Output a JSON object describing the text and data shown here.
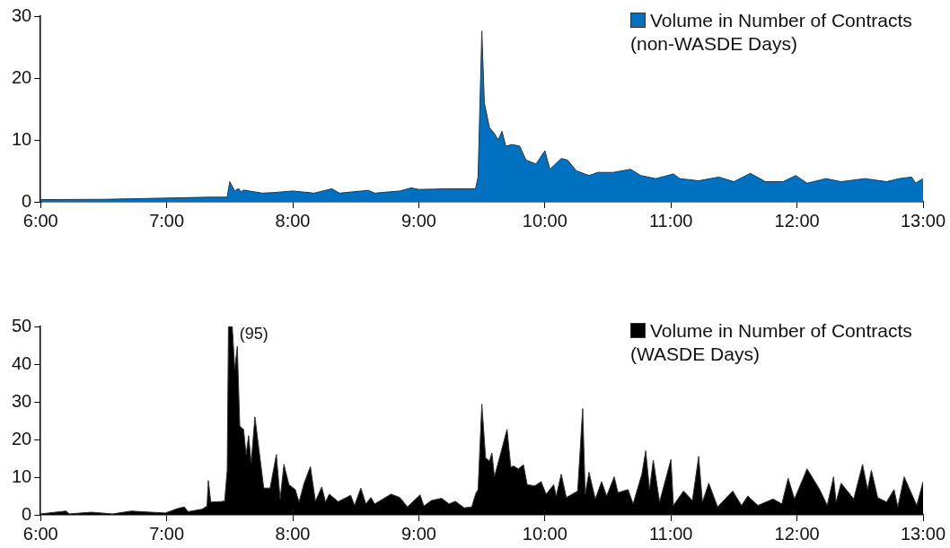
{
  "chart_data": [
    {
      "type": "area",
      "xlim": [
        6,
        13
      ],
      "xticks": [
        {
          "value": 6,
          "label": "6:00"
        },
        {
          "value": 7,
          "label": "7:00"
        },
        {
          "value": 8,
          "label": "8:00"
        },
        {
          "value": 9,
          "label": "9:00"
        },
        {
          "value": 10,
          "label": "10:00"
        },
        {
          "value": 11,
          "label": "11:00"
        },
        {
          "value": 12,
          "label": "12:00"
        },
        {
          "value": 13,
          "label": "13:00"
        }
      ],
      "ylim": [
        0,
        30
      ],
      "yticks": [
        0,
        10,
        20,
        30
      ],
      "grid": false,
      "legend": "top right",
      "series": [
        {
          "name": "Volume in Number of Contracts (non-WASDE Days)",
          "color": "#0070c0",
          "x": [
            6.0,
            6.5,
            7.0,
            7.34,
            7.48,
            7.5,
            7.54,
            7.57,
            7.59,
            7.61,
            7.76,
            7.85,
            8.0,
            8.17,
            8.31,
            8.37,
            8.6,
            8.65,
            8.85,
            8.94,
            9.0,
            9.23,
            9.38,
            9.45,
            9.47,
            9.5,
            9.52,
            9.56,
            9.6,
            9.63,
            9.66,
            9.69,
            9.74,
            9.8,
            9.85,
            9.93,
            10.0,
            10.04,
            10.13,
            10.18,
            10.25,
            10.35,
            10.42,
            10.54,
            10.68,
            10.76,
            10.88,
            11.02,
            11.07,
            11.22,
            11.38,
            11.5,
            11.63,
            11.75,
            11.89,
            11.99,
            12.08,
            12.23,
            12.35,
            12.54,
            12.71,
            12.81,
            12.91,
            12.94,
            13.0
          ],
          "values": [
            0.35,
            0.4,
            0.6,
            0.75,
            0.75,
            3.25,
            1.75,
            2.15,
            1.6,
            1.9,
            1.4,
            1.5,
            1.75,
            1.4,
            2.1,
            1.4,
            1.85,
            1.4,
            1.75,
            2.25,
            2.0,
            2.1,
            2.1,
            2.1,
            4.0,
            27.6,
            16.0,
            12.0,
            11.0,
            10.0,
            11.4,
            9.0,
            9.25,
            9.0,
            6.75,
            6.1,
            8.25,
            5.25,
            7.0,
            6.75,
            5.0,
            4.25,
            4.75,
            4.75,
            5.25,
            4.25,
            3.75,
            4.5,
            3.75,
            3.4,
            4.0,
            3.25,
            4.6,
            3.25,
            3.25,
            4.25,
            3.0,
            3.75,
            3.25,
            3.75,
            3.25,
            3.75,
            4.0,
            3.0,
            3.75
          ]
        }
      ]
    },
    {
      "type": "area",
      "xlim": [
        6,
        13
      ],
      "xticks": [
        {
          "value": 6,
          "label": "6:00"
        },
        {
          "value": 7,
          "label": "7:00"
        },
        {
          "value": 8,
          "label": "8:00"
        },
        {
          "value": 9,
          "label": "9:00"
        },
        {
          "value": 10,
          "label": "10:00"
        },
        {
          "value": 11,
          "label": "11:00"
        },
        {
          "value": 12,
          "label": "12:00"
        },
        {
          "value": 13,
          "label": "13:00"
        }
      ],
      "ylim": [
        0,
        50
      ],
      "yticks": [
        0,
        10,
        20,
        30,
        40,
        50
      ],
      "grid": false,
      "legend": "top right",
      "annotations": [
        {
          "text": "(95)",
          "x": 7.52,
          "y": 50
        }
      ],
      "series": [
        {
          "name": "Volume in Number of Contracts (WASDE Days)",
          "color": "#000000",
          "x": [
            6.0,
            6.2,
            6.23,
            6.4,
            6.57,
            6.72,
            6.87,
            6.99,
            7.09,
            7.14,
            7.17,
            7.28,
            7.32,
            7.33,
            7.35,
            7.43,
            7.46,
            7.48,
            7.49,
            7.52,
            7.54,
            7.56,
            7.58,
            7.61,
            7.63,
            7.65,
            7.67,
            7.7,
            7.77,
            7.82,
            7.87,
            7.9,
            7.93,
            7.97,
            8.02,
            8.05,
            8.07,
            8.09,
            8.14,
            8.18,
            8.23,
            8.26,
            8.29,
            8.36,
            8.46,
            8.49,
            8.54,
            8.58,
            8.62,
            8.65,
            8.78,
            8.85,
            8.91,
            9.01,
            9.04,
            9.1,
            9.18,
            9.24,
            9.29,
            9.36,
            9.42,
            9.45,
            9.47,
            9.5,
            9.53,
            9.56,
            9.58,
            9.6,
            9.7,
            9.73,
            9.75,
            9.79,
            9.83,
            9.86,
            9.92,
            9.97,
            10.01,
            10.07,
            10.09,
            10.13,
            10.17,
            10.26,
            10.3,
            10.32,
            10.35,
            10.4,
            10.45,
            10.49,
            10.55,
            10.58,
            10.66,
            10.7,
            10.77,
            10.8,
            10.83,
            10.86,
            10.91,
            11.0,
            11.02,
            11.1,
            11.17,
            11.22,
            11.25,
            11.3,
            11.37,
            11.49,
            11.56,
            11.61,
            11.69,
            11.81,
            11.88,
            11.93,
            11.98,
            12.08,
            12.18,
            12.24,
            12.29,
            12.31,
            12.35,
            12.45,
            12.52,
            12.56,
            12.59,
            12.64,
            12.71,
            12.77,
            12.8,
            12.85,
            12.9,
            12.95,
            13.0
          ],
          "values": [
            0.25,
            1.0,
            0.25,
            0.7,
            0.25,
            1.0,
            0.7,
            0.5,
            1.7,
            2.1,
            0.85,
            1.5,
            2.35,
            9.1,
            3.4,
            3.5,
            3.7,
            11.8,
            50,
            50,
            38.7,
            44.7,
            23.5,
            22.7,
            16.0,
            21.0,
            13.9,
            26.0,
            7.1,
            7.1,
            16.0,
            4.2,
            13.4,
            8.0,
            6.7,
            3.4,
            5.9,
            8.4,
            12.8,
            3.6,
            7.4,
            3.4,
            5.5,
            3.5,
            5.2,
            2.5,
            7.1,
            2.9,
            4.6,
            2.9,
            5.5,
            4.6,
            2.1,
            5.3,
            2.35,
            3.8,
            4.4,
            2.9,
            3.6,
            1.85,
            2.1,
            5.5,
            6.7,
            29.4,
            15.1,
            14.3,
            16.4,
            10.1,
            22.7,
            12.6,
            13.0,
            12.2,
            13.3,
            8.0,
            7.7,
            8.8,
            5.5,
            8.0,
            5.0,
            10.8,
            4.6,
            6.3,
            28.2,
            5.5,
            11.3,
            4.2,
            8.8,
            5.0,
            10.1,
            5.9,
            6.7,
            2.9,
            10.9,
            17.0,
            6.7,
            14.5,
            3.4,
            14.7,
            2.5,
            6.3,
            3.8,
            15.5,
            3.4,
            8.4,
            2.1,
            6.3,
            2.5,
            5.0,
            2.5,
            4.2,
            2.9,
            9.7,
            4.2,
            12.2,
            6.7,
            2.5,
            10.1,
            3.4,
            8.4,
            4.2,
            13.4,
            6.7,
            11.8,
            4.6,
            3.4,
            6.7,
            2.1,
            10.1,
            6.3,
            2.5,
            8.8
          ]
        }
      ]
    }
  ]
}
